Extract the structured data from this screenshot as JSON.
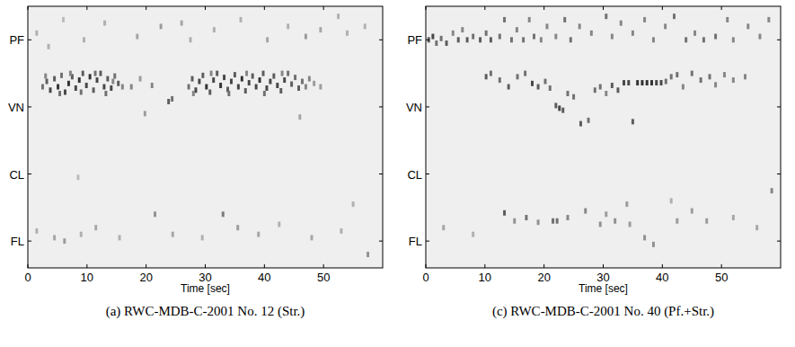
{
  "chart_data": [
    {
      "type": "heatmap",
      "title": "(a) RWC-MDB-C-2001 No. 12 (Str.)",
      "x_label": "Time [sec]",
      "xlim": [
        0,
        60
      ],
      "xticks": [
        0,
        10,
        20,
        30,
        40,
        50
      ],
      "ylim": [
        0.6,
        4.5
      ],
      "yticks": [
        {
          "value": 1,
          "label": "FL"
        },
        {
          "value": 2,
          "label": "CL"
        },
        {
          "value": 3,
          "label": "VN"
        },
        {
          "value": 4,
          "label": "PF"
        }
      ],
      "cells": [
        [
          2.5,
          3.3,
          0.6
        ],
        [
          3.2,
          3.38,
          0.7
        ],
        [
          3.8,
          3.25,
          0.8
        ],
        [
          4.5,
          3.42,
          0.7
        ],
        [
          5.1,
          3.3,
          0.9
        ],
        [
          5.7,
          3.47,
          0.6
        ],
        [
          6.3,
          3.22,
          0.8
        ],
        [
          6.9,
          3.35,
          0.9
        ],
        [
          7.5,
          3.45,
          0.7
        ],
        [
          8.1,
          3.28,
          0.8
        ],
        [
          8.7,
          3.4,
          0.9
        ],
        [
          9.3,
          3.5,
          0.7
        ],
        [
          9.9,
          3.32,
          0.8
        ],
        [
          10.5,
          3.45,
          0.9
        ],
        [
          11.1,
          3.25,
          0.7
        ],
        [
          11.7,
          3.4,
          0.8
        ],
        [
          12.3,
          3.5,
          0.7
        ],
        [
          12.9,
          3.3,
          0.8
        ],
        [
          13.5,
          3.42,
          0.7
        ],
        [
          14.1,
          3.28,
          0.8
        ],
        [
          14.7,
          3.46,
          0.6
        ],
        [
          15.3,
          3.35,
          0.7
        ],
        [
          16.0,
          3.3,
          0.5
        ],
        [
          3.0,
          3.46,
          0.5
        ],
        [
          5.4,
          3.2,
          0.6
        ],
        [
          7.2,
          3.5,
          0.5
        ],
        [
          9.0,
          3.22,
          0.6
        ],
        [
          11.4,
          3.5,
          0.6
        ],
        [
          13.2,
          3.2,
          0.6
        ],
        [
          14.4,
          3.38,
          0.5
        ],
        [
          17.5,
          3.3,
          0.5
        ],
        [
          19.0,
          3.42,
          0.4
        ],
        [
          21.0,
          3.32,
          0.5
        ],
        [
          23.8,
          3.08,
          0.7
        ],
        [
          24.4,
          3.12,
          0.6
        ],
        [
          27.2,
          3.3,
          0.6
        ],
        [
          27.8,
          3.42,
          0.7
        ],
        [
          28.4,
          3.25,
          0.8
        ],
        [
          29.0,
          3.38,
          0.8
        ],
        [
          29.6,
          3.47,
          0.7
        ],
        [
          30.2,
          3.3,
          0.9
        ],
        [
          30.8,
          3.22,
          0.7
        ],
        [
          31.4,
          3.4,
          0.8
        ],
        [
          32.0,
          3.5,
          0.7
        ],
        [
          32.6,
          3.32,
          0.9
        ],
        [
          33.2,
          3.44,
          0.8
        ],
        [
          33.8,
          3.26,
          0.7
        ],
        [
          34.4,
          3.38,
          0.8
        ],
        [
          35.0,
          3.48,
          0.7
        ],
        [
          35.6,
          3.3,
          0.8
        ],
        [
          36.2,
          3.42,
          0.9
        ],
        [
          36.8,
          3.24,
          0.7
        ],
        [
          37.4,
          3.36,
          0.8
        ],
        [
          38.0,
          3.46,
          0.7
        ],
        [
          38.6,
          3.3,
          0.8
        ],
        [
          39.2,
          3.4,
          0.9
        ],
        [
          39.8,
          3.5,
          0.7
        ],
        [
          40.4,
          3.28,
          0.8
        ],
        [
          41.0,
          3.38,
          0.8
        ],
        [
          41.6,
          3.46,
          0.7
        ],
        [
          42.2,
          3.32,
          0.8
        ],
        [
          42.8,
          3.24,
          0.7
        ],
        [
          43.4,
          3.4,
          0.8
        ],
        [
          44.0,
          3.5,
          0.6
        ],
        [
          44.6,
          3.34,
          0.7
        ],
        [
          45.2,
          3.44,
          0.6
        ],
        [
          45.8,
          3.28,
          0.7
        ],
        [
          46.4,
          3.38,
          0.6
        ],
        [
          47.0,
          3.3,
          0.5
        ],
        [
          47.6,
          3.42,
          0.5
        ],
        [
          48.4,
          3.35,
          0.4
        ],
        [
          49.5,
          3.3,
          0.4
        ],
        [
          28.0,
          3.2,
          0.5
        ],
        [
          31.0,
          3.5,
          0.5
        ],
        [
          34.0,
          3.2,
          0.6
        ],
        [
          37.0,
          3.5,
          0.5
        ],
        [
          40.0,
          3.2,
          0.6
        ],
        [
          43.0,
          3.5,
          0.5
        ],
        [
          1.5,
          4.1,
          0.3
        ],
        [
          3.5,
          3.9,
          0.3
        ],
        [
          6.0,
          4.3,
          0.25
        ],
        [
          9.5,
          4.0,
          0.3
        ],
        [
          13.0,
          4.25,
          0.3
        ],
        [
          18.5,
          4.05,
          0.35
        ],
        [
          22.5,
          4.2,
          0.4
        ],
        [
          26.0,
          4.25,
          0.35
        ],
        [
          27.5,
          4.0,
          0.3
        ],
        [
          31.5,
          4.15,
          0.3
        ],
        [
          36.0,
          4.3,
          0.3
        ],
        [
          40.5,
          4.0,
          0.35
        ],
        [
          44.0,
          4.2,
          0.3
        ],
        [
          47.0,
          4.05,
          0.4
        ],
        [
          49.5,
          4.15,
          0.35
        ],
        [
          52.5,
          4.35,
          0.3
        ],
        [
          54.0,
          4.1,
          0.3
        ],
        [
          57.0,
          4.2,
          0.3
        ],
        [
          19.8,
          2.9,
          0.4
        ],
        [
          46.0,
          2.85,
          0.35
        ],
        [
          8.5,
          1.95,
          0.25
        ],
        [
          55.0,
          1.55,
          0.3
        ],
        [
          1.5,
          1.15,
          0.3
        ],
        [
          4.5,
          1.05,
          0.35
        ],
        [
          6.2,
          1.0,
          0.4
        ],
        [
          9.0,
          1.1,
          0.3
        ],
        [
          11.5,
          1.2,
          0.35
        ],
        [
          15.5,
          1.05,
          0.3
        ],
        [
          21.5,
          1.4,
          0.45
        ],
        [
          24.5,
          1.1,
          0.35
        ],
        [
          29.5,
          1.05,
          0.3
        ],
        [
          33.0,
          1.4,
          0.55
        ],
        [
          35.5,
          1.2,
          0.4
        ],
        [
          39.0,
          1.1,
          0.35
        ],
        [
          42.5,
          1.25,
          0.3
        ],
        [
          48.0,
          1.05,
          0.35
        ],
        [
          53.0,
          1.15,
          0.3
        ],
        [
          57.5,
          0.8,
          0.45
        ]
      ]
    },
    {
      "type": "heatmap",
      "title": "(c) RWC-MDB-C-2001 No. 40 (Pf.+Str.)",
      "x_label": "Time [sec]",
      "xlim": [
        0,
        60
      ],
      "xticks": [
        0,
        10,
        20,
        30,
        40,
        50
      ],
      "ylim": [
        0.6,
        4.5
      ],
      "yticks": [
        {
          "value": 1,
          "label": "FL"
        },
        {
          "value": 2,
          "label": "CL"
        },
        {
          "value": 3,
          "label": "VN"
        },
        {
          "value": 4,
          "label": "PF"
        }
      ],
      "cells": [
        [
          0.5,
          4.0,
          0.7
        ],
        [
          1.2,
          4.05,
          0.8
        ],
        [
          1.8,
          3.95,
          0.6
        ],
        [
          2.6,
          4.02,
          0.6
        ],
        [
          3.5,
          3.95,
          0.7
        ],
        [
          4.6,
          4.1,
          0.5
        ],
        [
          5.5,
          4.0,
          0.7
        ],
        [
          6.2,
          4.15,
          0.5
        ],
        [
          7.0,
          4.0,
          0.7
        ],
        [
          8.0,
          4.05,
          0.6
        ],
        [
          9.2,
          4.0,
          0.7
        ],
        [
          10.2,
          4.1,
          0.6
        ],
        [
          11.0,
          4.0,
          0.7
        ],
        [
          12.5,
          4.05,
          0.6
        ],
        [
          13.3,
          4.3,
          0.6
        ],
        [
          14.5,
          4.0,
          0.6
        ],
        [
          15.4,
          4.15,
          0.5
        ],
        [
          16.5,
          4.0,
          0.6
        ],
        [
          17.5,
          4.3,
          0.5
        ],
        [
          18.3,
          4.05,
          0.6
        ],
        [
          19.5,
          4.0,
          0.5
        ],
        [
          20.5,
          4.2,
          0.5
        ],
        [
          22.0,
          4.05,
          0.5
        ],
        [
          23.5,
          4.3,
          0.6
        ],
        [
          24.5,
          4.0,
          0.6
        ],
        [
          26.0,
          4.2,
          0.5
        ],
        [
          28.0,
          4.1,
          0.5
        ],
        [
          30.5,
          4.35,
          0.6
        ],
        [
          31.5,
          4.05,
          0.5
        ],
        [
          33.0,
          4.25,
          0.5
        ],
        [
          35.0,
          4.1,
          0.5
        ],
        [
          37.0,
          4.3,
          0.5
        ],
        [
          38.5,
          4.0,
          0.5
        ],
        [
          40.5,
          4.2,
          0.5
        ],
        [
          42.0,
          4.35,
          0.6
        ],
        [
          44.0,
          4.0,
          0.6
        ],
        [
          45.5,
          4.1,
          0.5
        ],
        [
          47.0,
          4.0,
          0.6
        ],
        [
          49.0,
          4.05,
          0.6
        ],
        [
          51.0,
          4.3,
          0.5
        ],
        [
          52.0,
          4.0,
          0.5
        ],
        [
          54.5,
          4.2,
          0.5
        ],
        [
          56.5,
          4.05,
          0.5
        ],
        [
          58.0,
          4.3,
          0.5
        ],
        [
          10.2,
          3.45,
          0.7
        ],
        [
          11.0,
          3.5,
          0.6
        ],
        [
          12.5,
          3.4,
          0.6
        ],
        [
          14.0,
          3.3,
          0.7
        ],
        [
          15.5,
          3.45,
          0.6
        ],
        [
          16.8,
          3.5,
          0.6
        ],
        [
          18.0,
          3.35,
          0.8
        ],
        [
          19.0,
          3.3,
          0.7
        ],
        [
          20.2,
          3.38,
          0.6
        ],
        [
          21.0,
          3.28,
          0.6
        ],
        [
          22.0,
          3.02,
          0.7
        ],
        [
          22.6,
          2.98,
          0.8
        ],
        [
          23.2,
          2.95,
          0.7
        ],
        [
          24.0,
          3.2,
          0.6
        ],
        [
          25.0,
          3.15,
          0.6
        ],
        [
          26.2,
          2.75,
          0.7
        ],
        [
          27.5,
          2.8,
          0.6
        ],
        [
          28.6,
          3.25,
          0.6
        ],
        [
          29.5,
          3.3,
          0.6
        ],
        [
          30.5,
          3.2,
          0.5
        ],
        [
          31.5,
          3.32,
          0.7
        ],
        [
          32.5,
          3.25,
          0.7
        ],
        [
          33.5,
          3.36,
          0.8
        ],
        [
          34.3,
          3.36,
          0.8
        ],
        [
          35.0,
          2.78,
          0.7
        ],
        [
          35.8,
          3.36,
          0.9
        ],
        [
          36.6,
          3.36,
          0.9
        ],
        [
          37.4,
          3.36,
          0.9
        ],
        [
          38.2,
          3.36,
          0.9
        ],
        [
          39.0,
          3.36,
          0.8
        ],
        [
          39.8,
          3.36,
          0.8
        ],
        [
          40.6,
          3.38,
          0.6
        ],
        [
          41.5,
          3.45,
          0.6
        ],
        [
          42.5,
          3.48,
          0.6
        ],
        [
          43.5,
          3.3,
          0.5
        ],
        [
          45.0,
          3.5,
          0.6
        ],
        [
          46.5,
          3.4,
          0.6
        ],
        [
          48.0,
          3.45,
          0.6
        ],
        [
          49.0,
          3.33,
          0.5
        ],
        [
          50.5,
          3.48,
          0.5
        ],
        [
          52.0,
          3.4,
          0.5
        ],
        [
          54.0,
          3.45,
          0.5
        ],
        [
          34.0,
          1.55,
          0.4
        ],
        [
          41.5,
          1.6,
          0.3
        ],
        [
          58.5,
          1.75,
          0.5
        ],
        [
          3.0,
          1.2,
          0.35
        ],
        [
          8.0,
          1.1,
          0.3
        ],
        [
          13.3,
          1.42,
          0.7
        ],
        [
          15.0,
          1.3,
          0.45
        ],
        [
          17.0,
          1.35,
          0.6
        ],
        [
          19.0,
          1.28,
          0.45
        ],
        [
          21.5,
          1.3,
          0.6
        ],
        [
          22.2,
          1.3,
          0.6
        ],
        [
          24.0,
          1.35,
          0.5
        ],
        [
          27.0,
          1.45,
          0.5
        ],
        [
          29.5,
          1.25,
          0.45
        ],
        [
          30.5,
          1.4,
          0.4
        ],
        [
          32.0,
          1.3,
          0.45
        ],
        [
          34.5,
          1.25,
          0.4
        ],
        [
          37.0,
          1.05,
          0.45
        ],
        [
          38.5,
          0.95,
          0.45
        ],
        [
          42.5,
          1.3,
          0.4
        ],
        [
          45.0,
          1.45,
          0.4
        ],
        [
          47.5,
          1.3,
          0.4
        ],
        [
          52.0,
          1.35,
          0.35
        ],
        [
          56.0,
          1.2,
          0.35
        ]
      ]
    }
  ]
}
